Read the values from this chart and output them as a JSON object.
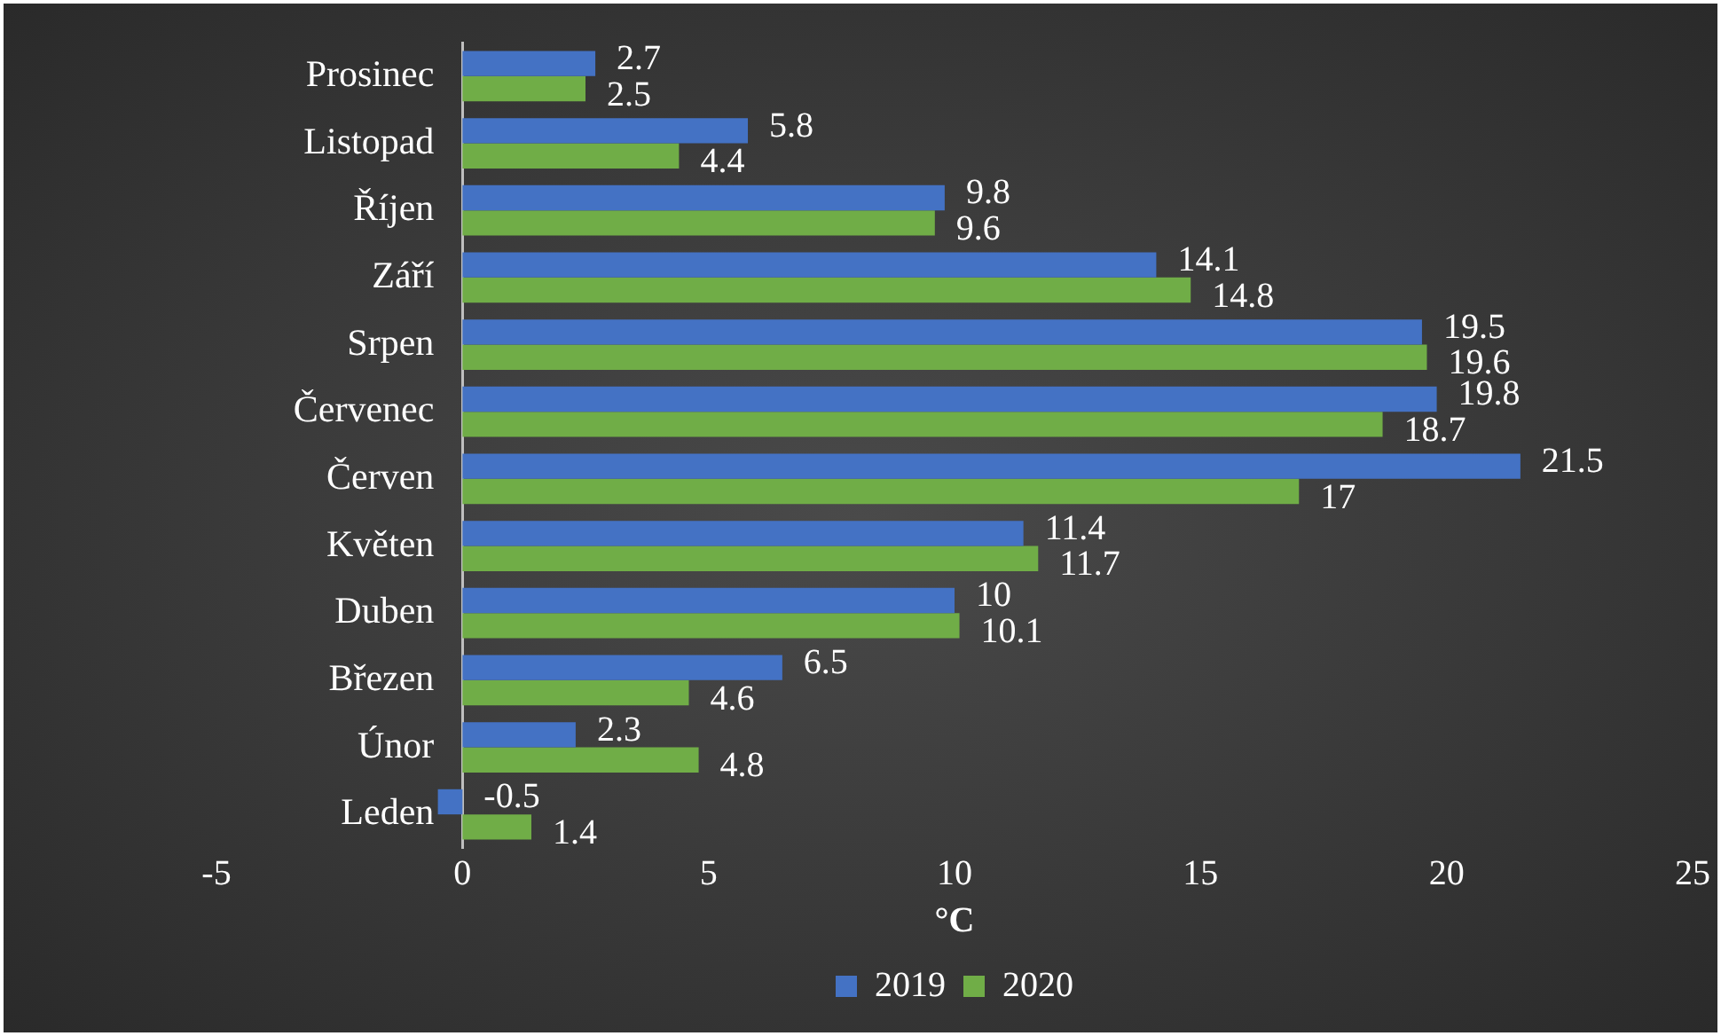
{
  "chart_data": {
    "type": "bar",
    "orientation": "horizontal",
    "xlabel": "°C",
    "categories": [
      "Prosinec",
      "Listopad",
      "Říjen",
      "Září",
      "Srpen",
      "Červenec",
      "Červen",
      "Květen",
      "Duben",
      "Březen",
      "Únor",
      "Leden"
    ],
    "series": [
      {
        "name": "2019",
        "color": "#4472c4",
        "values": [
          2.7,
          5.8,
          9.8,
          14.1,
          19.5,
          19.8,
          21.5,
          11.4,
          10,
          6.5,
          2.3,
          -0.5
        ]
      },
      {
        "name": "2020",
        "color": "#70ad47",
        "values": [
          2.5,
          4.4,
          9.6,
          14.8,
          19.6,
          18.7,
          17,
          11.7,
          10.1,
          4.6,
          4.8,
          1.4
        ]
      }
    ],
    "xlim": [
      -5,
      25
    ],
    "xticks": [
      -5,
      0,
      5,
      10,
      15,
      20,
      25
    ],
    "grid": false,
    "legend": "bottom",
    "data_labels": true
  }
}
